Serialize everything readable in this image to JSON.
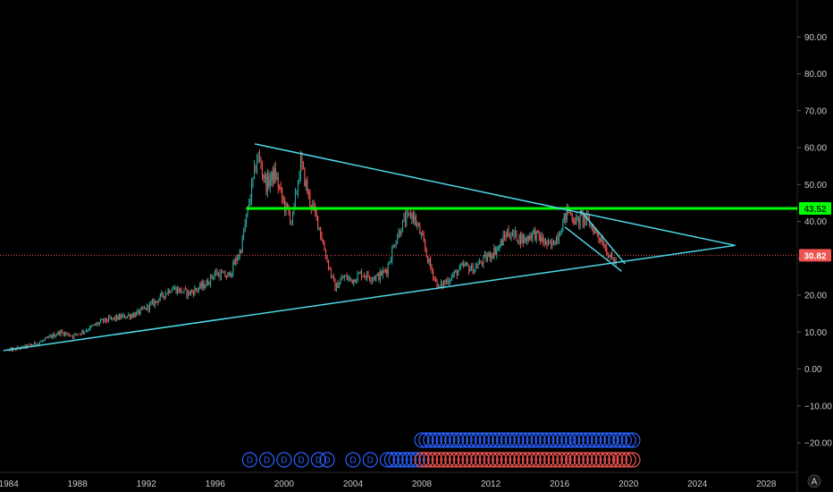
{
  "chart_data": {
    "type": "candlestick",
    "y_axis": {
      "side": "right",
      "range": [
        -28,
        100
      ],
      "ticks": [
        "90.00",
        "80.00",
        "70.00",
        "60.00",
        "50.00",
        "40.00",
        "30.00",
        "20.00",
        "10.00",
        "0.00",
        "−10.00",
        "−20.00"
      ],
      "tick_values": [
        90,
        80,
        70,
        60,
        50,
        40,
        30,
        20,
        10,
        0,
        -10,
        -20
      ]
    },
    "x_axis": {
      "range": [
        1983.5,
        2029.8
      ],
      "ticks": [
        "1984",
        "1988",
        "1992",
        "1996",
        "2000",
        "2004",
        "2008",
        "2012",
        "2016",
        "2020",
        "2024",
        "2028"
      ],
      "tick_values": [
        1984,
        1988,
        1992,
        1996,
        2000,
        2004,
        2008,
        2012,
        2016,
        2020,
        2024,
        2028
      ]
    },
    "price_path": [
      [
        1984.0,
        5.0
      ],
      [
        1985.0,
        6.0
      ],
      [
        1986.0,
        7.5
      ],
      [
        1987.0,
        10.0
      ],
      [
        1987.8,
        9.0
      ],
      [
        1988.5,
        10.5
      ],
      [
        1989.5,
        13.0
      ],
      [
        1990.5,
        14.0
      ],
      [
        1991.5,
        15.0
      ],
      [
        1992.5,
        18.0
      ],
      [
        1993.5,
        22.0
      ],
      [
        1994.5,
        20.5
      ],
      [
        1995.5,
        23.0
      ],
      [
        1996.0,
        26.0
      ],
      [
        1996.8,
        25.0
      ],
      [
        1997.5,
        32.0
      ],
      [
        1998.0,
        45.0
      ],
      [
        1998.5,
        58.0
      ],
      [
        1999.0,
        50.0
      ],
      [
        1999.5,
        53.0
      ],
      [
        2000.0,
        45.0
      ],
      [
        2000.5,
        40.0
      ],
      [
        2001.0,
        56.0
      ],
      [
        2001.5,
        46.0
      ],
      [
        2002.0,
        40.0
      ],
      [
        2002.5,
        30.0
      ],
      [
        2003.0,
        22.0
      ],
      [
        2003.5,
        25.0
      ],
      [
        2004.0,
        24.0
      ],
      [
        2004.5,
        26.0
      ],
      [
        2005.0,
        25.0
      ],
      [
        2005.5,
        25.0
      ],
      [
        2006.0,
        27.0
      ],
      [
        2006.5,
        35.0
      ],
      [
        2007.0,
        40.0
      ],
      [
        2007.5,
        42.0
      ],
      [
        2008.0,
        36.0
      ],
      [
        2008.5,
        28.0
      ],
      [
        2009.0,
        22.0
      ],
      [
        2009.5,
        24.0
      ],
      [
        2010.0,
        26.0
      ],
      [
        2010.5,
        28.0
      ],
      [
        2011.0,
        27.0
      ],
      [
        2011.5,
        29.0
      ],
      [
        2012.0,
        31.0
      ],
      [
        2012.5,
        33.0
      ],
      [
        2013.0,
        37.0
      ],
      [
        2013.5,
        36.0
      ],
      [
        2014.0,
        35.0
      ],
      [
        2014.5,
        37.0
      ],
      [
        2015.0,
        35.0
      ],
      [
        2015.5,
        33.0
      ],
      [
        2016.0,
        37.0
      ],
      [
        2016.5,
        43.0
      ],
      [
        2017.0,
        40.0
      ],
      [
        2017.5,
        41.0
      ],
      [
        2018.0,
        38.0
      ],
      [
        2018.5,
        35.0
      ],
      [
        2019.0,
        30.0
      ],
      [
        2019.3,
        29.0
      ]
    ],
    "horizontal_lines": [
      {
        "value": 43.52,
        "label": "43.52",
        "color": "#00ff00",
        "style": "solid"
      },
      {
        "value": 30.82,
        "label": "30.82",
        "color": "#ef5350",
        "style": "dotted"
      }
    ],
    "trendlines": [
      {
        "from": [
          1983.7,
          5.0
        ],
        "to": [
          2026.2,
          33.5
        ],
        "color": "#4dd9e8"
      },
      {
        "from": [
          1998.3,
          61.0
        ],
        "to": [
          2026.2,
          33.5
        ],
        "color": "#4dd9e8"
      },
      {
        "from": [
          2016.3,
          38.5
        ],
        "to": [
          2019.6,
          26.5
        ],
        "color": "#4dd9e8"
      },
      {
        "from": [
          2017.2,
          43.0
        ],
        "to": [
          2019.8,
          28.5
        ],
        "color": "#4dd9e8"
      }
    ],
    "dividend_markers_single": [
      {
        "x": 1998.0,
        "label": "D"
      },
      {
        "x": 1999.0,
        "label": "D"
      },
      {
        "x": 2000.0,
        "label": "D"
      },
      {
        "x": 2001.0,
        "label": "D"
      },
      {
        "x": 2002.0,
        "label": "D"
      },
      {
        "x": 2002.5,
        "label": "D"
      },
      {
        "x": 2004.0,
        "label": "D"
      },
      {
        "x": 2005.0,
        "label": "D"
      }
    ],
    "dividend_row_top": {
      "start": 2008.0,
      "end": 2020.3,
      "highlight": [
        {
          "x": 2016.7,
          "label": "D"
        },
        {
          "x": 2019.3,
          "label": "D"
        }
      ]
    },
    "dividend_row_bottom": {
      "start": 2006.0,
      "end": 2008.0
    },
    "earnings_row": {
      "start": 2008.0,
      "end": 2020.3,
      "highlight": [
        {
          "x": 2016.5,
          "label": "E"
        },
        {
          "x": 2019.3,
          "label": "E"
        }
      ]
    },
    "colors": {
      "up": "#26a69a",
      "down": "#ef5350",
      "background": "#000000",
      "trend": "#4dd9e8",
      "resistance": "#00ff00",
      "current": "#ef5350",
      "dividend": "#2962ff",
      "earnings": "#ef5350",
      "axis_text": "#c9c9c9"
    }
  },
  "axis_corner_label": "A"
}
